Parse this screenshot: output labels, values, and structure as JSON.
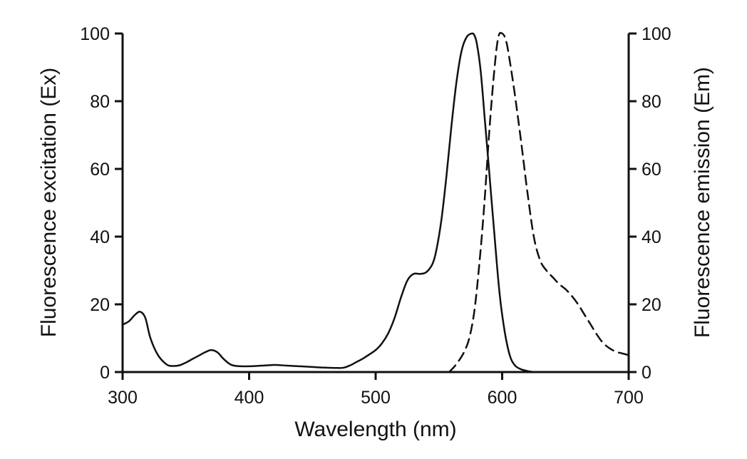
{
  "chart_data": {
    "type": "line",
    "title": "",
    "xlabel": "Wavelength (nm)",
    "ylabel": "Fluorescence excitation (Ex)",
    "y2label": "Fluorescence emission (Em)",
    "xlim": [
      300,
      700
    ],
    "ylim": [
      0,
      100
    ],
    "y2lim": [
      0,
      100
    ],
    "xticks": [
      "300",
      "400",
      "500",
      "600",
      "700"
    ],
    "yticks": [
      "0",
      "20",
      "40",
      "60",
      "80",
      "100"
    ],
    "y2ticks": [
      "0",
      "20",
      "40",
      "60",
      "80",
      "100"
    ],
    "grid": false,
    "series": [
      {
        "name": "Excitation (Ex)",
        "axis": "left",
        "style": "solid",
        "color": "#111111",
        "x": [
          300,
          305,
          310,
          314,
          318,
          322,
          328,
          335,
          340,
          345,
          350,
          355,
          360,
          365,
          370,
          375,
          380,
          385,
          390,
          400,
          410,
          420,
          430,
          440,
          450,
          460,
          470,
          475,
          480,
          485,
          490,
          500,
          505,
          510,
          515,
          520,
          525,
          530,
          535,
          540,
          545,
          548,
          552,
          556,
          560,
          564,
          568,
          572,
          576,
          578,
          580,
          583,
          586,
          590,
          594,
          598,
          602,
          606,
          610,
          615,
          620,
          625
        ],
        "y": [
          14,
          15,
          17,
          17.8,
          16,
          10,
          5,
          2.2,
          1.8,
          2,
          2.8,
          3.8,
          4.8,
          5.8,
          6.5,
          5.8,
          3.8,
          2.3,
          1.8,
          1.7,
          1.9,
          2.1,
          1.9,
          1.7,
          1.5,
          1.3,
          1.2,
          1.3,
          2,
          3,
          4,
          6.5,
          8.5,
          11.5,
          16,
          22,
          27,
          29,
          29,
          29.5,
          32,
          36,
          45,
          58,
          73,
          86,
          95,
          99,
          100,
          99.5,
          97,
          89,
          76,
          58,
          40,
          23,
          12,
          5,
          2,
          0.8,
          0.3,
          0
        ]
      },
      {
        "name": "Emission (Em)",
        "axis": "right",
        "style": "dashed",
        "color": "#111111",
        "x": [
          558,
          562,
          566,
          570,
          574,
          578,
          582,
          586,
          590,
          594,
          597,
          600,
          603,
          606,
          610,
          615,
          620,
          625,
          630,
          635,
          640,
          645,
          650,
          655,
          660,
          665,
          670,
          675,
          680,
          685,
          690,
          695,
          700
        ],
        "y": [
          0,
          1.5,
          3.5,
          6,
          10,
          18,
          32,
          50,
          72,
          90,
          99,
          100,
          98,
          92,
          82,
          68,
          53,
          40,
          33,
          30,
          28,
          26,
          24.5,
          22.5,
          20,
          17,
          14,
          11,
          8.5,
          7,
          6,
          5.5,
          5
        ]
      }
    ]
  }
}
